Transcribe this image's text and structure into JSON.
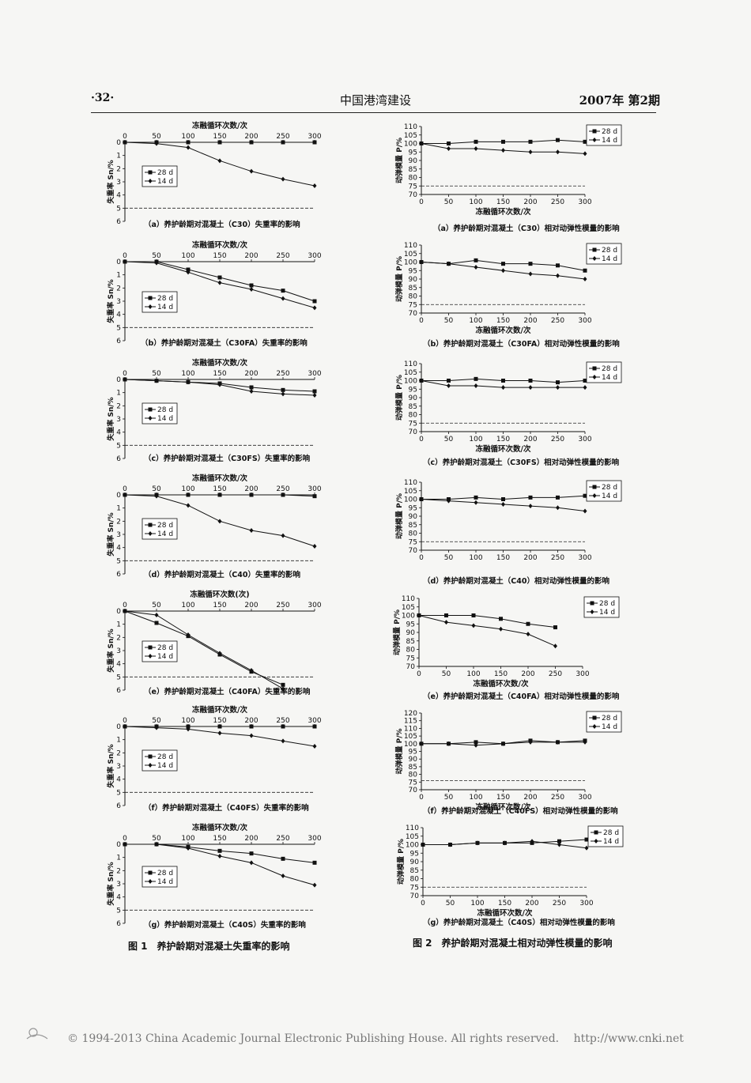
{
  "header": {
    "page_number": "·32·",
    "journal": "中国港湾建设",
    "issue": "2007年 第2期"
  },
  "figure1_caption": "图 1　养护龄期对混凝土失重率的影响",
  "figure2_caption": "图 2　养护龄期对混凝土相对动弹性模量的影响",
  "footer": "© 1994-2013 China Academic Journal Electronic Publishing House. All rights reserved.　 http://www.cnki.net",
  "colors": {
    "ink": "#111111",
    "page": "#f6f6f4"
  },
  "chart_data": [
    {
      "id": "a-left",
      "type": "line",
      "title": "（a）养护龄期对混凝土（C30）失重率的影响",
      "xlabel": "冻融循环次数/次",
      "ylabel": "失重率 Sn/%",
      "x": [
        0,
        50,
        100,
        150,
        200,
        250,
        300
      ],
      "xticks": [
        0,
        50,
        100,
        150,
        200,
        250,
        300
      ],
      "yticks": [
        0,
        1,
        2,
        3,
        4,
        5,
        6
      ],
      "ylim": [
        0,
        6
      ],
      "y_inverted": true,
      "x_axis_on_top": true,
      "threshold": 5,
      "legend_position": "middle-left",
      "series": [
        {
          "name": "28 d",
          "marker": "square",
          "values": [
            0,
            0,
            0,
            0,
            0,
            0,
            0
          ]
        },
        {
          "name": "14 d",
          "marker": "diamond",
          "values": [
            0,
            0.1,
            0.4,
            1.4,
            2.2,
            2.8,
            3.3
          ]
        }
      ]
    },
    {
      "id": "b-left",
      "type": "line",
      "title": "（b）养护龄期对混凝土（C30FA）失重率的影响",
      "xlabel": "冻融循环次数/次",
      "ylabel": "失重率 Sn/%",
      "x": [
        0,
        50,
        100,
        150,
        200,
        250,
        300
      ],
      "xticks": [
        0,
        50,
        100,
        150,
        200,
        250,
        300
      ],
      "yticks": [
        0,
        1,
        2,
        3,
        4,
        5,
        6
      ],
      "ylim": [
        0,
        6
      ],
      "y_inverted": true,
      "x_axis_on_top": true,
      "threshold": 5,
      "legend_position": "bottom-left",
      "series": [
        {
          "name": "28 d",
          "marker": "square",
          "values": [
            0,
            0,
            0.6,
            1.2,
            1.8,
            2.2,
            3.0
          ]
        },
        {
          "name": "14 d",
          "marker": "diamond",
          "values": [
            0,
            0.1,
            0.8,
            1.6,
            2.1,
            2.8,
            3.5
          ]
        }
      ]
    },
    {
      "id": "c-left",
      "type": "line",
      "title": "（c）养护龄期对混凝土（C30FS）失重率的影响",
      "xlabel": "冻融循环次数/次",
      "ylabel": "失重率 Sn/%",
      "x": [
        0,
        50,
        100,
        150,
        200,
        250,
        300
      ],
      "xticks": [
        0,
        50,
        100,
        150,
        200,
        250,
        300
      ],
      "yticks": [
        0,
        1,
        2,
        3,
        4,
        5,
        6
      ],
      "ylim": [
        0,
        6
      ],
      "y_inverted": true,
      "x_axis_on_top": true,
      "threshold": 5,
      "legend_position": "middle-left",
      "series": [
        {
          "name": "28 d",
          "marker": "square",
          "values": [
            0,
            0.1,
            0.2,
            0.3,
            0.6,
            0.8,
            0.9
          ]
        },
        {
          "name": "14 d",
          "marker": "diamond",
          "values": [
            0,
            0.1,
            0.2,
            0.4,
            0.9,
            1.1,
            1.2
          ]
        }
      ]
    },
    {
      "id": "d-left",
      "type": "line",
      "title": "（d）养护龄期对混凝土（C40）失重率的影响",
      "xlabel": "冻融循环次数/次",
      "ylabel": "失重率 Sn/%",
      "x": [
        0,
        50,
        100,
        150,
        200,
        250,
        300
      ],
      "xticks": [
        0,
        50,
        100,
        150,
        200,
        250,
        300
      ],
      "yticks": [
        0,
        1,
        2,
        3,
        4,
        5,
        6
      ],
      "ylim": [
        0,
        6
      ],
      "y_inverted": true,
      "x_axis_on_top": true,
      "threshold": 5,
      "legend_position": "middle-left",
      "series": [
        {
          "name": "28 d",
          "marker": "square",
          "values": [
            0,
            0,
            0,
            0,
            0,
            0,
            0.1
          ]
        },
        {
          "name": "14 d",
          "marker": "diamond",
          "values": [
            0,
            0.1,
            0.8,
            2.0,
            2.7,
            3.1,
            3.9
          ]
        }
      ]
    },
    {
      "id": "e-left",
      "type": "line",
      "title": "（e）养护龄期对混凝土（C40FA）失重率的影响",
      "xlabel": "冻融循环次数(次)",
      "ylabel": "失重率 Sn/%",
      "x": [
        0,
        50,
        100,
        150,
        200,
        250
      ],
      "xticks": [
        0,
        50,
        100,
        150,
        200,
        250,
        300
      ],
      "yticks": [
        0,
        1,
        2,
        3,
        4,
        5,
        6
      ],
      "ylim": [
        0,
        6
      ],
      "y_inverted": true,
      "x_axis_on_top": true,
      "threshold": 5,
      "legend_position": "bottom-left",
      "series": [
        {
          "name": "28 d",
          "marker": "square",
          "values": [
            0,
            0.9,
            1.9,
            3.3,
            4.6,
            5.6
          ]
        },
        {
          "name": "14 d",
          "marker": "diamond",
          "values": [
            0,
            0.3,
            1.8,
            3.2,
            4.5,
            5.9
          ]
        }
      ]
    },
    {
      "id": "f-left",
      "type": "line",
      "title": "（f）养护龄期对混凝土（C40FS）失重率的影响",
      "xlabel": "冻融循环次数/次",
      "ylabel": "失重率 Sn/%",
      "x": [
        0,
        50,
        100,
        150,
        200,
        250,
        300
      ],
      "xticks": [
        0,
        50,
        100,
        150,
        200,
        250,
        300
      ],
      "yticks": [
        0,
        1,
        2,
        3,
        4,
        5,
        6
      ],
      "ylim": [
        0,
        6
      ],
      "y_inverted": true,
      "x_axis_on_top": true,
      "threshold": 5,
      "legend_position": "middle-left",
      "series": [
        {
          "name": "28 d",
          "marker": "square",
          "values": [
            0,
            0,
            0,
            0,
            0,
            0,
            0
          ]
        },
        {
          "name": "14 d",
          "marker": "diamond",
          "values": [
            0,
            0.1,
            0.2,
            0.5,
            0.7,
            1.1,
            1.5
          ]
        }
      ]
    },
    {
      "id": "g-left",
      "type": "line",
      "title": "（g）养护龄期对混凝土（C40S）失重率的影响",
      "xlabel": "冻融循环次数/次",
      "ylabel": "失重率 Sn/%",
      "x": [
        0,
        50,
        100,
        150,
        200,
        250,
        300
      ],
      "xticks": [
        0,
        50,
        100,
        150,
        200,
        250,
        300
      ],
      "yticks": [
        0,
        1,
        2,
        3,
        4,
        5,
        6
      ],
      "ylim": [
        0,
        6
      ],
      "y_inverted": true,
      "x_axis_on_top": true,
      "threshold": 5,
      "legend_position": "top-left",
      "series": [
        {
          "name": "28 d",
          "marker": "square",
          "values": [
            0,
            0,
            0.2,
            0.5,
            0.7,
            1.1,
            1.4
          ]
        },
        {
          "name": "14 d",
          "marker": "diamond",
          "values": [
            0,
            0,
            0.3,
            0.9,
            1.4,
            2.4,
            3.1
          ]
        }
      ]
    },
    {
      "id": "a-right",
      "type": "line",
      "title": "（a）养护龄期对混凝土（C30）相对动弹性模量的影响",
      "xlabel": "冻融循环次数/次",
      "ylabel": "动弹模量 P/%",
      "x": [
        0,
        50,
        100,
        150,
        200,
        250,
        300
      ],
      "xticks": [
        0,
        50,
        100,
        150,
        200,
        250,
        300
      ],
      "yticks": [
        70,
        75,
        80,
        85,
        90,
        95,
        100,
        105,
        110
      ],
      "ylim": [
        70,
        110
      ],
      "threshold": 75,
      "legend_position": "top-right",
      "series": [
        {
          "name": "28 d",
          "marker": "square",
          "values": [
            100,
            100,
            101,
            101,
            101,
            102,
            101
          ]
        },
        {
          "name": "14 d",
          "marker": "diamond",
          "values": [
            100,
            97,
            97,
            96,
            95,
            95,
            94
          ]
        }
      ]
    },
    {
      "id": "b-right",
      "type": "line",
      "title": "（b）养护龄期对混凝土（C30FA）相对动弹性模量的影响",
      "xlabel": "冻融循环次数/次",
      "ylabel": "动弹模量 P/%",
      "x": [
        0,
        50,
        100,
        150,
        200,
        250,
        300
      ],
      "xticks": [
        0,
        50,
        100,
        150,
        200,
        250,
        300
      ],
      "yticks": [
        70,
        75,
        80,
        85,
        90,
        95,
        100,
        105,
        110
      ],
      "ylim": [
        70,
        110
      ],
      "threshold": 75,
      "legend_position": "top-right",
      "series": [
        {
          "name": "28 d",
          "marker": "square",
          "values": [
            100,
            99,
            101,
            99,
            99,
            98,
            95
          ]
        },
        {
          "name": "14 d",
          "marker": "diamond",
          "values": [
            100,
            99,
            97,
            95,
            93,
            92,
            90
          ]
        }
      ]
    },
    {
      "id": "c-right",
      "type": "line",
      "title": "（c）养护龄期对混凝土（C30FS）相对动弹性模量的影响",
      "xlabel": "冻融循环次数/次",
      "ylabel": "动弹模量 P/%",
      "x": [
        0,
        50,
        100,
        150,
        200,
        250,
        300
      ],
      "xticks": [
        0,
        50,
        100,
        150,
        200,
        250,
        300
      ],
      "yticks": [
        70,
        75,
        80,
        85,
        90,
        95,
        100,
        105,
        110
      ],
      "ylim": [
        70,
        110
      ],
      "threshold": 75,
      "legend_position": "top-right",
      "series": [
        {
          "name": "28 d",
          "marker": "square",
          "values": [
            100,
            100,
            101,
            100,
            100,
            99,
            100
          ]
        },
        {
          "name": "14 d",
          "marker": "diamond",
          "values": [
            100,
            97,
            97,
            96,
            96,
            96,
            96
          ]
        }
      ]
    },
    {
      "id": "d-right",
      "type": "line",
      "title": "（d）养护龄期对混凝土（C40）相对动弹性模量的影响",
      "xlabel": "",
      "ylabel": "动弹模量 P/%",
      "x": [
        0,
        50,
        100,
        150,
        200,
        250,
        300
      ],
      "xticks": [
        0,
        50,
        100,
        150,
        200,
        250,
        300
      ],
      "yticks": [
        70,
        75,
        80,
        85,
        90,
        95,
        100,
        105,
        110
      ],
      "ylim": [
        70,
        110
      ],
      "threshold": 75,
      "legend_position": "top-right",
      "series": [
        {
          "name": "28 d",
          "marker": "square",
          "values": [
            100,
            100,
            101,
            100,
            101,
            101,
            102
          ]
        },
        {
          "name": "14 d",
          "marker": "diamond",
          "values": [
            100,
            99,
            98,
            97,
            96,
            95,
            93
          ]
        }
      ]
    },
    {
      "id": "e-right",
      "type": "line",
      "title": "（e）养护龄期对混凝土（C40FA）相对动弹性模量的影响",
      "xlabel": "冻融循环次数/次",
      "ylabel": "动弹模量 P/%",
      "x": [
        0,
        50,
        100,
        150,
        200,
        250
      ],
      "xticks": [
        0,
        50,
        100,
        150,
        200,
        250,
        300
      ],
      "yticks": [
        70,
        75,
        80,
        85,
        90,
        95,
        100,
        105,
        110
      ],
      "ylim": [
        70,
        110
      ],
      "threshold": null,
      "legend_position": "top-right",
      "series": [
        {
          "name": "28 d",
          "marker": "square",
          "values": [
            100,
            100,
            100,
            98,
            95,
            93
          ]
        },
        {
          "name": "14 d",
          "marker": "diamond",
          "values": [
            100,
            96,
            94,
            92,
            89,
            82
          ]
        }
      ]
    },
    {
      "id": "f-right",
      "type": "line",
      "title": "（f）养护龄期对混凝土（C40FS）相对动弹性模量的影响",
      "xlabel": "冻融循环次数/次",
      "ylabel": "动弹模量 P/%",
      "x": [
        0,
        50,
        100,
        150,
        200,
        250,
        300
      ],
      "xticks": [
        0,
        50,
        100,
        150,
        200,
        250,
        300
      ],
      "yticks": [
        70,
        75,
        80,
        85,
        90,
        95,
        100,
        105,
        110,
        115,
        120
      ],
      "ylim": [
        70,
        120
      ],
      "threshold": 76,
      "legend_position": "top-right",
      "series": [
        {
          "name": "28 d",
          "marker": "square",
          "values": [
            100,
            100,
            101,
            100,
            102,
            101,
            102
          ]
        },
        {
          "name": "14 d",
          "marker": "diamond",
          "values": [
            100,
            100,
            99,
            100,
            101,
            101,
            101
          ]
        }
      ]
    },
    {
      "id": "g-right",
      "type": "line",
      "title": "（g）养护龄期对混凝土（C40S）相对动弹性模量的影响",
      "xlabel": "冻融循环次数/次",
      "ylabel": "动弹模量 P/%",
      "x": [
        0,
        50,
        100,
        150,
        200,
        250,
        300
      ],
      "xticks": [
        0,
        50,
        100,
        150,
        200,
        250,
        300
      ],
      "yticks": [
        70,
        75,
        80,
        85,
        90,
        95,
        100,
        105,
        110
      ],
      "ylim": [
        70,
        110
      ],
      "threshold": 75,
      "legend_position": "top-right",
      "series": [
        {
          "name": "28 d",
          "marker": "square",
          "values": [
            100,
            100,
            101,
            101,
            101,
            102,
            103
          ]
        },
        {
          "name": "14 d",
          "marker": "diamond",
          "values": [
            100,
            100,
            101,
            101,
            102,
            100,
            98
          ]
        }
      ]
    }
  ]
}
